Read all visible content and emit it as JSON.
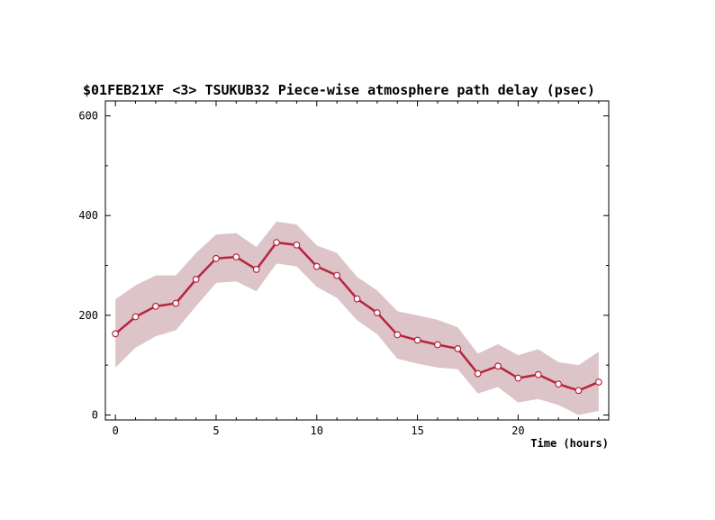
{
  "chart_data": {
    "type": "line",
    "title": "$01FEB21XF <3>  TSUKUB32  Piece-wise atmosphere path delay (psec)",
    "xlabel": "Time (hours)",
    "ylabel": "",
    "xlim": [
      -0.5,
      24.5
    ],
    "ylim": [
      -10,
      630
    ],
    "x_ticks": [
      0,
      5,
      10,
      15,
      20
    ],
    "y_ticks": [
      0,
      200,
      400,
      600
    ],
    "grid": false,
    "colors": {
      "line": "#b8243c",
      "band": "#dcc4c8",
      "marker_fill": "#ffffff"
    },
    "series": [
      {
        "x": [
          0,
          1,
          2,
          3,
          4,
          5,
          6,
          7,
          8,
          9,
          10,
          11,
          12,
          13,
          14,
          15,
          16,
          17,
          18,
          19,
          20,
          21,
          22,
          23,
          24
        ],
        "values": [
          163,
          197,
          218,
          224,
          272,
          314,
          317,
          292,
          346,
          341,
          298,
          280,
          233,
          205,
          161,
          150,
          141,
          133,
          83,
          98,
          74,
          81,
          62,
          49,
          66
        ],
        "upper": [
          232,
          260,
          280,
          280,
          325,
          362,
          365,
          337,
          388,
          382,
          340,
          325,
          277,
          250,
          208,
          200,
          191,
          176,
          123,
          142,
          120,
          132,
          106,
          100,
          127
        ],
        "lower": [
          95,
          135,
          158,
          170,
          218,
          265,
          268,
          248,
          304,
          298,
          257,
          235,
          190,
          162,
          113,
          103,
          95,
          92,
          43,
          56,
          25,
          32,
          20,
          0,
          8
        ]
      }
    ]
  }
}
